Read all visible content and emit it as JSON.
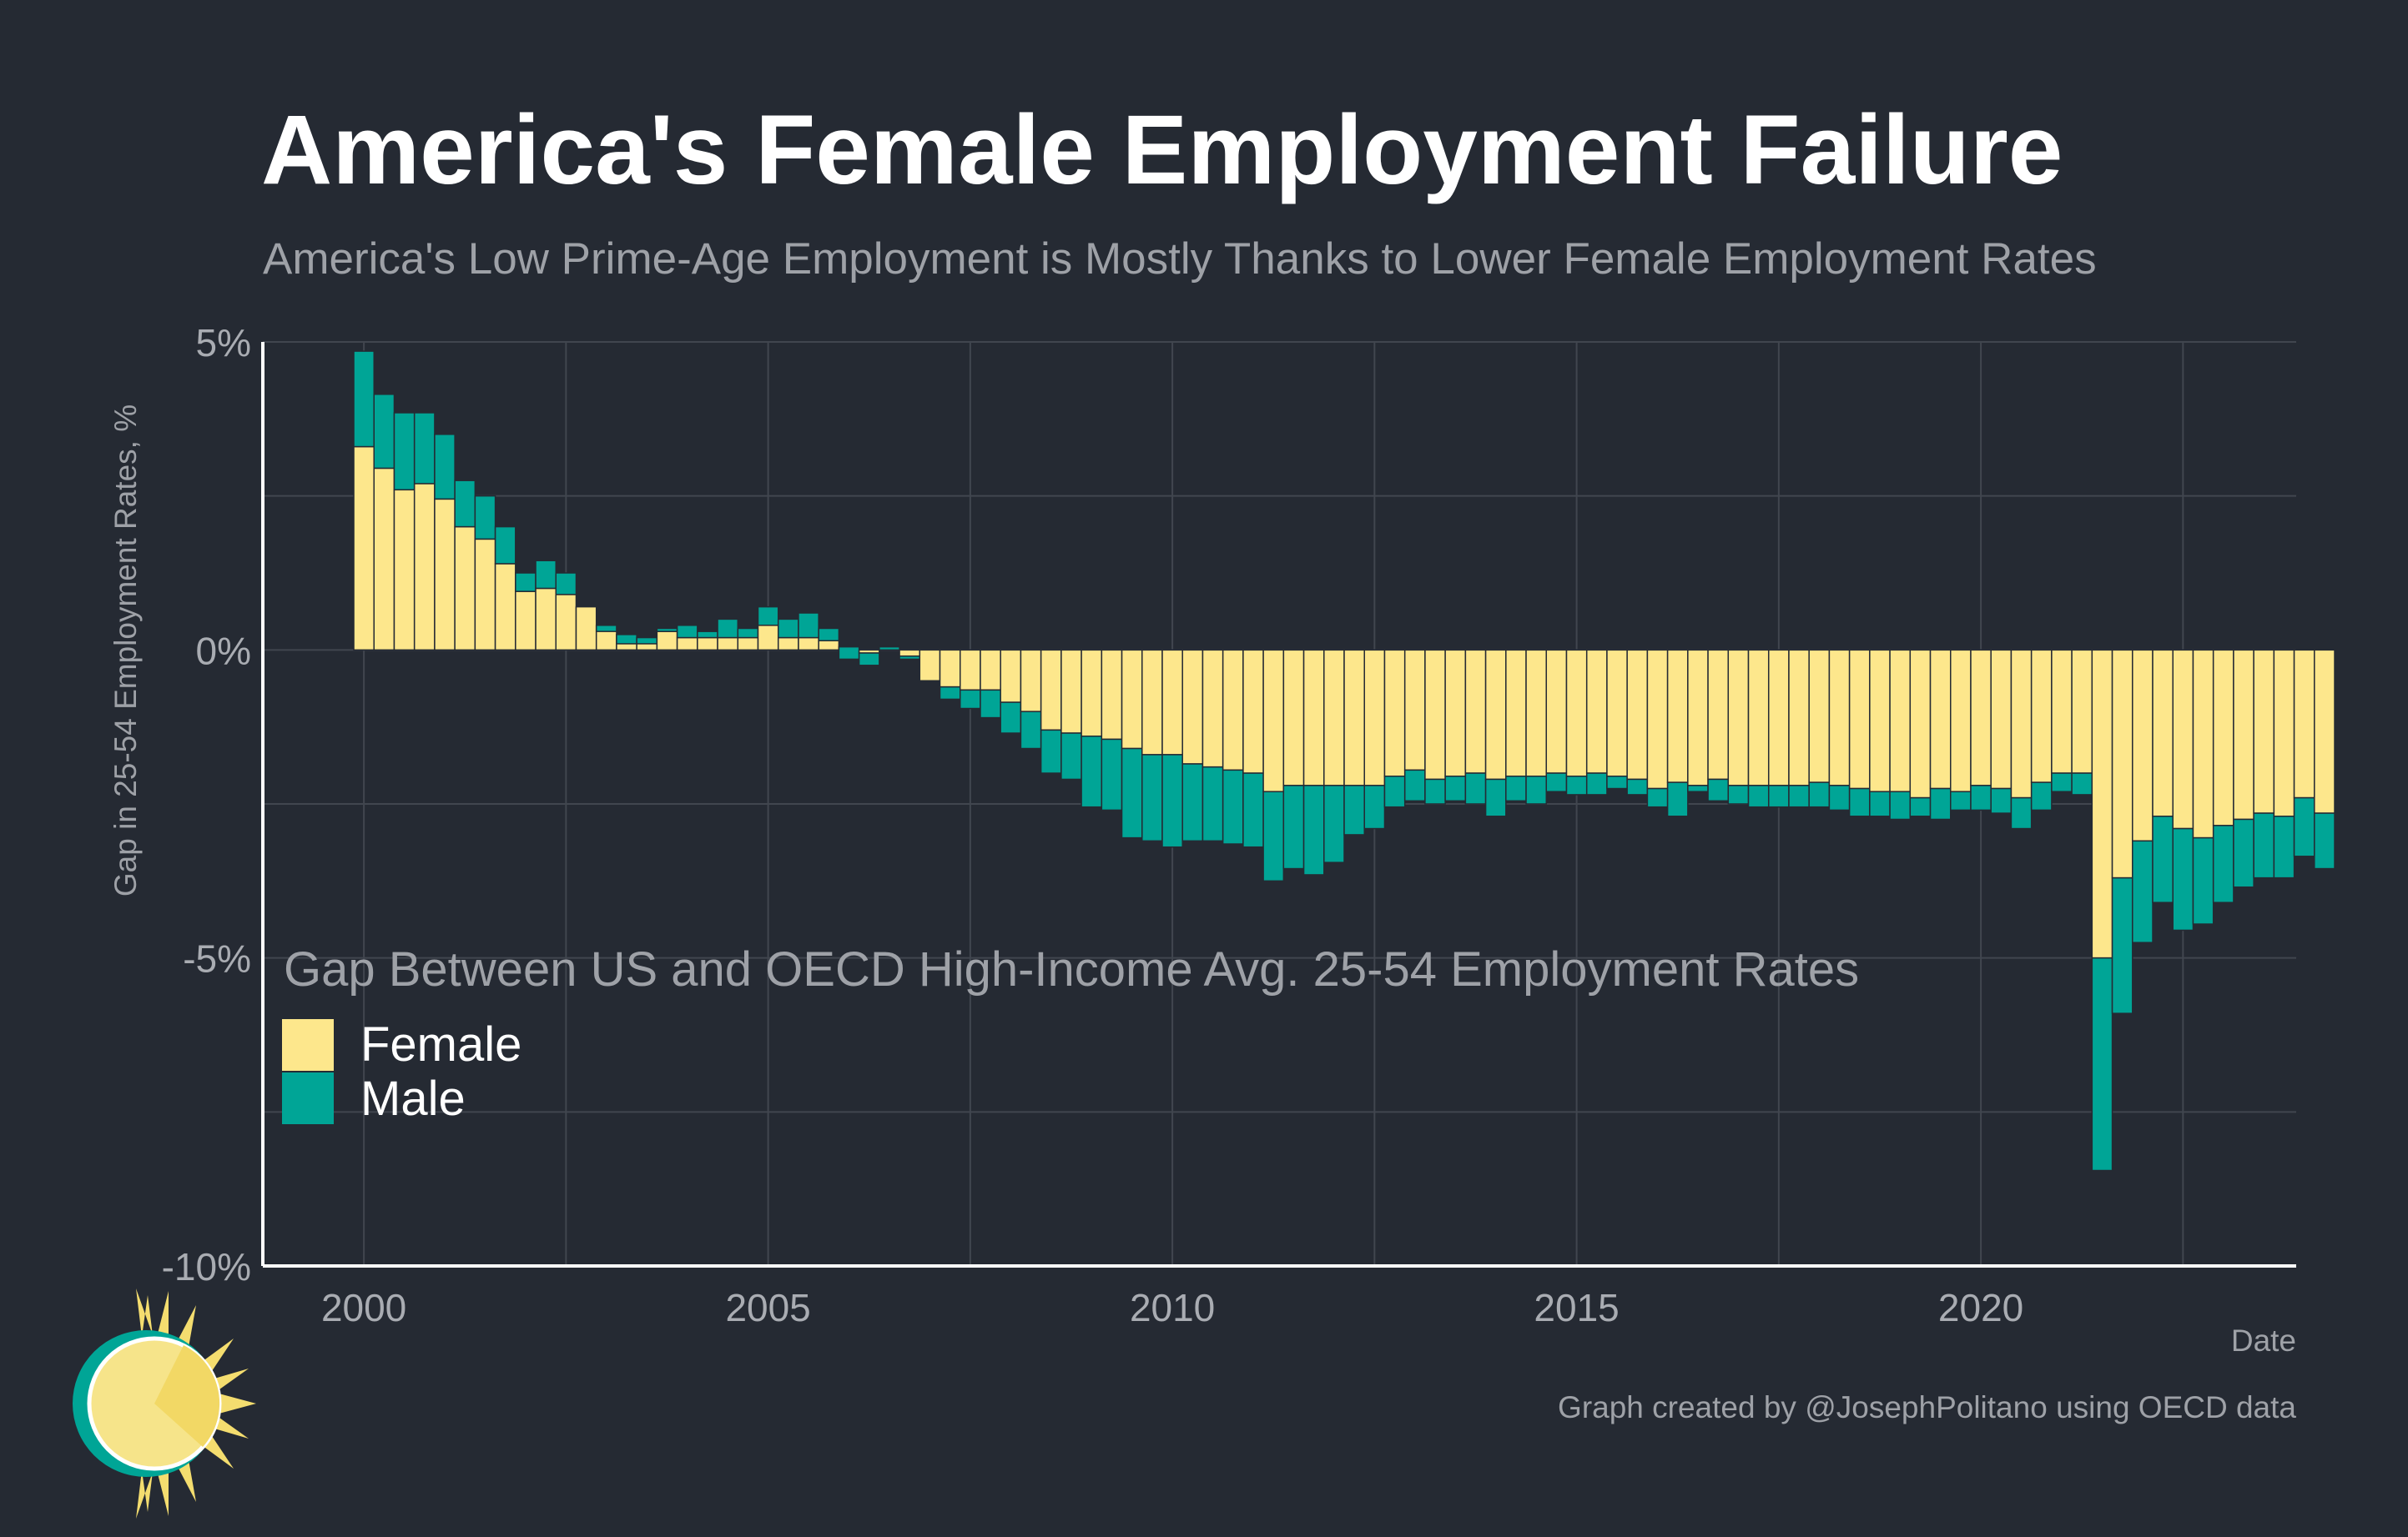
{
  "colors": {
    "background": "#252a33",
    "grid": "#41464f",
    "axis": "#ffffff",
    "female": "#fde78c",
    "male": "#00a596",
    "bar_outline": "#252a33"
  },
  "logo": {
    "icon": "sun-logo-icon"
  },
  "chart_data": {
    "type": "bar",
    "stacked": true,
    "title": "America's Female Employment Failure",
    "subtitle": "America's Low Prime-Age Employment is Mostly Thanks to Lower Female Employment Rates",
    "xlabel": "Date",
    "ylabel": "Gap in 25-54 Employment Rates, %",
    "caption": "Graph created by @JosephPolitano using OECD data",
    "xlim": [
      1998.75,
      2023.9
    ],
    "ylim": [
      -10,
      5
    ],
    "x_ticks": [
      2000,
      2005,
      2010,
      2015,
      2020
    ],
    "x_tick_labels": [
      "2000",
      "2005",
      "2010",
      "2015",
      "2020"
    ],
    "y_ticks": [
      5,
      0,
      -5,
      -10
    ],
    "y_tick_labels": [
      "5%",
      "0%",
      "-5%",
      "-10%"
    ],
    "grid": true,
    "legend_position": "bottom-left",
    "legend_title": "Gap Between US and OECD High-Income Avg. 25-54 Employment Rates",
    "series": [
      {
        "name": "Female",
        "color": "#fde78c"
      },
      {
        "name": "Male",
        "color": "#00a596"
      }
    ],
    "start_quarter": "2000-Q1",
    "female": [
      3.3,
      2.95,
      2.6,
      2.7,
      2.45,
      2.0,
      1.8,
      1.4,
      0.95,
      1.0,
      0.9,
      0.7,
      0.4,
      0.25,
      0.2,
      0.3,
      0.2,
      0.2,
      0.2,
      0.2,
      0.4,
      0.2,
      0.2,
      0.15,
      -0.15,
      -0.05,
      0.05,
      -0.15,
      -0.5,
      -0.6,
      -0.65,
      -0.65,
      -0.85,
      -1.0,
      -1.3,
      -1.35,
      -1.4,
      -1.45,
      -1.6,
      -1.7,
      -1.7,
      -1.85,
      -1.9,
      -1.95,
      -2.0,
      -2.3,
      -2.2,
      -2.2,
      -2.2,
      -2.2,
      -2.2,
      -2.05,
      -1.95,
      -2.1,
      -2.05,
      -2.0,
      -2.1,
      -2.05,
      -2.05,
      -2.0,
      -2.05,
      -2.0,
      -2.05,
      -2.1,
      -2.25,
      -2.15,
      -2.2,
      -2.1,
      -2.2,
      -2.2,
      -2.2,
      -2.2,
      -2.15,
      -2.2,
      -2.25,
      -2.3,
      -2.3,
      -2.4,
      -2.25,
      -2.3,
      -2.2,
      -2.25,
      -2.4,
      -2.15,
      -2.0,
      -2.0,
      -5.0,
      -3.7,
      -3.1,
      -2.7,
      -2.9,
      -3.05,
      -2.85,
      -2.75,
      -2.65,
      -2.7,
      -2.4,
      -2.65
    ],
    "male": [
      1.55,
      1.2,
      1.25,
      1.15,
      1.05,
      0.75,
      0.7,
      0.6,
      0.3,
      0.45,
      0.35,
      0.0,
      -0.1,
      -0.15,
      -0.1,
      0.05,
      0.2,
      0.1,
      0.3,
      0.15,
      0.3,
      0.3,
      0.4,
      0.2,
      0.2,
      -0.2,
      -0.05,
      0.05,
      0.0,
      -0.2,
      -0.3,
      -0.45,
      -0.5,
      -0.6,
      -0.7,
      -0.75,
      -1.15,
      -1.15,
      -1.45,
      -1.4,
      -1.5,
      -1.25,
      -1.2,
      -1.2,
      -1.2,
      -1.45,
      -1.35,
      -1.45,
      -1.25,
      -0.8,
      -0.7,
      -0.5,
      -0.5,
      -0.4,
      -0.4,
      -0.5,
      -0.6,
      -0.4,
      -0.45,
      -0.3,
      -0.3,
      -0.35,
      -0.2,
      -0.25,
      -0.3,
      -0.55,
      -0.1,
      -0.35,
      -0.3,
      -0.35,
      -0.35,
      -0.35,
      -0.4,
      -0.4,
      -0.45,
      -0.4,
      -0.45,
      -0.3,
      -0.5,
      -0.3,
      -0.4,
      -0.4,
      -0.5,
      -0.45,
      -0.3,
      -0.35,
      -3.45,
      -2.2,
      -1.65,
      -1.4,
      -1.65,
      -1.4,
      -1.25,
      -1.1,
      -1.05,
      -1.0,
      -0.95,
      -0.9
    ]
  }
}
